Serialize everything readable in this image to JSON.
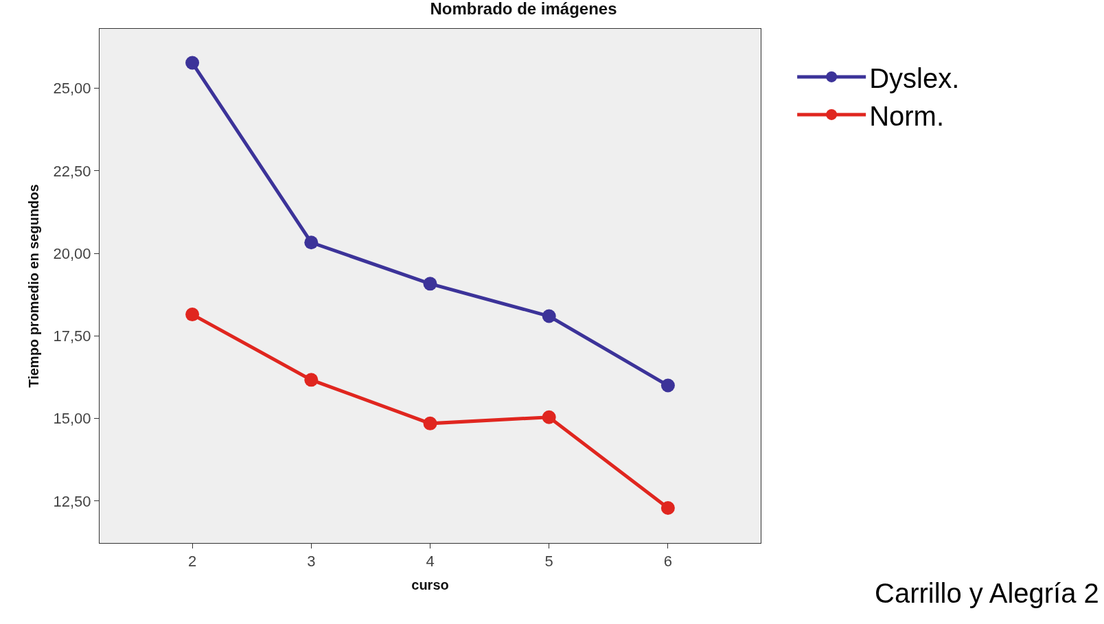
{
  "chart_data": {
    "type": "line",
    "title": "Nombrado de imágenes",
    "xlabel": "curso",
    "ylabel": "Tiempo promedio en segundos",
    "x": [
      2,
      3,
      4,
      5,
      6
    ],
    "series": [
      {
        "name": "Dyslex.",
        "color": "#3c3399",
        "values": [
          25.77,
          20.33,
          19.08,
          18.1,
          16.0
        ]
      },
      {
        "name": "Norm.",
        "color": "#e0261f",
        "values": [
          18.15,
          16.17,
          14.85,
          15.04,
          12.29
        ]
      }
    ],
    "xlim": [
      1.22,
      6.78
    ],
    "xticks": [
      2,
      3,
      4,
      5,
      6
    ],
    "ylim": [
      11.23,
      26.8
    ],
    "yticks": [
      {
        "value": 12.5,
        "label": "12,50"
      },
      {
        "value": 15,
        "label": "15,00"
      },
      {
        "value": 17.5,
        "label": "17,50"
      },
      {
        "value": 20,
        "label": "20,00"
      },
      {
        "value": 22.5,
        "label": "22,50"
      },
      {
        "value": 25,
        "label": "25,00"
      }
    ],
    "marker": "circle",
    "line_style": "solid",
    "grid": false,
    "legend": "right",
    "annotations": [
      "Carrillo y Alegría 2"
    ]
  }
}
